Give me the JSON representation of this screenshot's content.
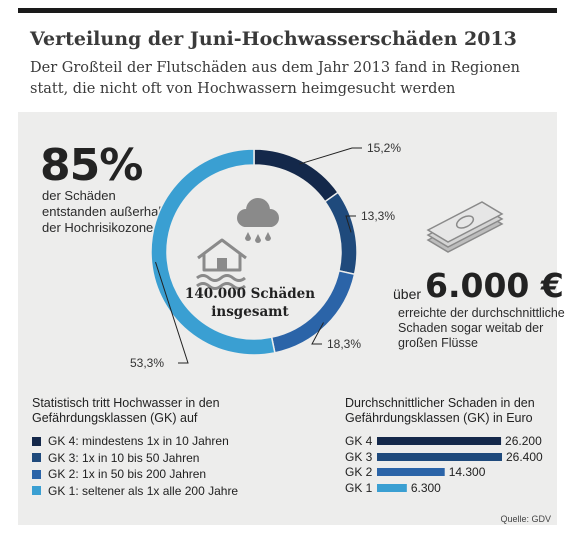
{
  "title": "Verteilung der Juni-Hochwasserschäden 2013",
  "subtitle": "Der Großteil der Flutschäden aus dem Jahr 2013 fand in Regionen statt, die nicht oft von Hochwassern heimgesucht werden",
  "stat_left": {
    "value": "85%",
    "text": "der Schäden entstanden außerhalb der Hochrisikozone"
  },
  "stat_right": {
    "prefix": "über",
    "value": "6.000 €",
    "text": "erreichte der durchschnitt­liche Schaden sogar weitab der großen Flüsse"
  },
  "donut_center": "140.000 Schäden insgesamt",
  "legend_title": "Statistisch tritt Hochwasser in den Gefährdungsklassen (GK) auf",
  "bars_title": "Durchschnittlicher Schaden in den Gefährdungsklassen (GK) in Euro",
  "source": "Quelle: GDV",
  "icons": [
    "house-flood-icon",
    "rain-cloud-icon",
    "banknote-icon"
  ],
  "chart_data": [
    {
      "type": "pie",
      "donut": true,
      "categories": [
        "GK 4: mindestens 1x in 10 Jahren",
        "GK 3: 1x in 10 bis 50 Jahren",
        "GK 2: 1x in 50 bis 200 Jahren",
        "GK 1: seltener als 1x alle 200 Jahre"
      ],
      "values": [
        15.2,
        13.3,
        18.3,
        53.3
      ],
      "labels": [
        "15,2%",
        "13,3%",
        "18,3%",
        "53,3%"
      ],
      "colors": [
        "#14284a",
        "#1f4a7c",
        "#2b64a8",
        "#3a9fd2"
      ]
    },
    {
      "type": "bar",
      "orientation": "horizontal",
      "categories": [
        "GK 4",
        "GK 3",
        "GK 2",
        "GK 1"
      ],
      "values": [
        26200,
        26400,
        14300,
        6300
      ],
      "value_labels": [
        "26.200",
        "26.400",
        "14.300",
        "6.300"
      ],
      "colors": [
        "#14284a",
        "#1f4a7c",
        "#2b64a8",
        "#3a9fd2"
      ]
    }
  ]
}
